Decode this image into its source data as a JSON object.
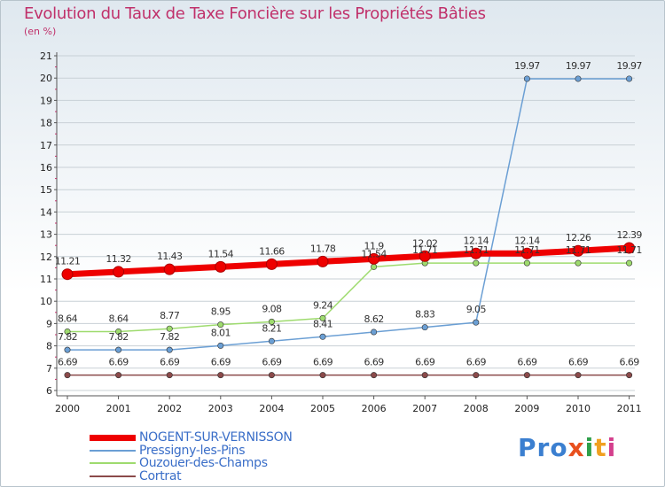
{
  "chart_data": {
    "type": "line",
    "title": "Evolution du Taux de Taxe Foncière sur les Propriétés Bâties",
    "ylabel": "(en %)",
    "categories": [
      "2000",
      "2001",
      "2002",
      "2003",
      "2004",
      "2005",
      "2006",
      "2007",
      "2008",
      "2009",
      "2010",
      "2011"
    ],
    "ylim": [
      6,
      21
    ],
    "yticks": [
      "6",
      "7",
      "8",
      "9",
      "10",
      "11",
      "12",
      "13",
      "14",
      "15",
      "16",
      "17",
      "18",
      "19",
      "20",
      "21"
    ],
    "series": [
      {
        "name": "NOGENT-SUR-VERNISSON",
        "color": "#ee0000",
        "values": [
          11.21,
          11.32,
          11.43,
          11.54,
          11.66,
          11.78,
          11.9,
          12.02,
          12.14,
          12.14,
          12.26,
          12.39
        ],
        "labels": [
          "11.21",
          "11.32",
          "11.43",
          "11.54",
          "11.66",
          "11.78",
          "11.9",
          "12.02",
          "12.14",
          "12.14",
          "12.26",
          "12.39"
        ]
      },
      {
        "name": "Pressigny-les-Pins",
        "color": "#6b9fd4",
        "values": [
          7.82,
          7.82,
          7.82,
          8.01,
          8.21,
          8.41,
          8.62,
          8.83,
          9.05,
          19.97,
          19.97,
          19.97
        ],
        "labels": [
          "7.82",
          "7.82",
          "7.82",
          "8.01",
          "8.21",
          "8.41",
          "8.62",
          "8.83",
          "9.05",
          "19.97",
          "19.97",
          "19.97"
        ]
      },
      {
        "name": "Ouzouer-des-Champs",
        "color": "#9edb6e",
        "values": [
          8.64,
          8.64,
          8.77,
          8.95,
          9.08,
          9.24,
          11.54,
          11.71,
          11.71,
          11.71,
          11.71,
          11.71
        ],
        "labels": [
          "8.64",
          "8.64",
          "8.77",
          "8.95",
          "9.08",
          "9.24",
          "11.54",
          "11.71",
          "11.71",
          "11.71",
          "11.71",
          "11.71"
        ]
      },
      {
        "name": "Cortrat",
        "color": "#8b4a4a",
        "values": [
          6.69,
          6.69,
          6.69,
          6.69,
          6.69,
          6.69,
          6.69,
          6.69,
          6.69,
          6.69,
          6.69,
          6.69
        ],
        "labels": [
          "6.69",
          "6.69",
          "6.69",
          "6.69",
          "6.69",
          "6.69",
          "6.69",
          "6.69",
          "6.69",
          "6.69",
          "6.69",
          "6.69"
        ]
      }
    ]
  },
  "legend": {
    "items": [
      {
        "label": "NOGENT-SUR-VERNISSON"
      },
      {
        "label": "Pressigny-les-Pins"
      },
      {
        "label": "Ouzouer-des-Champs"
      },
      {
        "label": "Cortrat"
      }
    ]
  },
  "brand": {
    "p1": "Pro",
    "p2": "x",
    "p3": "i",
    "p4": "t",
    "p5": "i"
  }
}
